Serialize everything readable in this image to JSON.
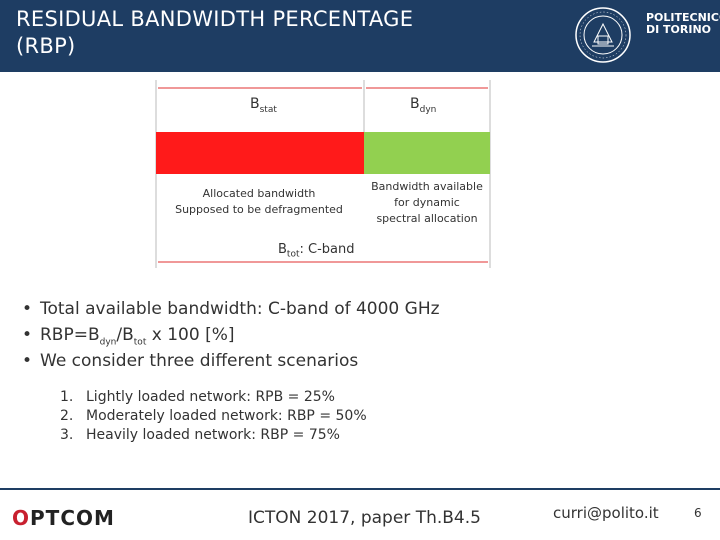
{
  "header": {
    "title_line1": "RESIDUAL BANDWIDTH PERCENTAGE",
    "title_line2": "(RBP)",
    "logo_line1": "POLITECNICO",
    "logo_line2": "DI TORINO",
    "colors": {
      "background": "#1e3d63",
      "text": "#ffffff"
    }
  },
  "diagram": {
    "bstat_main": "B",
    "bstat_sub": "stat",
    "bdyn_main": "B",
    "bdyn_sub": "dyn",
    "left_label_line1": "Allocated bandwidth",
    "left_label_line2": "Supposed to be defragmented",
    "right_label_line1": "Bandwidth available",
    "right_label_line2": "for dynamic",
    "right_label_line3": "spectral allocation",
    "btot_main": "B",
    "btot_sub": "tot",
    "btot_rest": ": C-band",
    "colors": {
      "allocated": "#ff1a1a",
      "available": "#92d050"
    }
  },
  "bullets": {
    "item1": "Total available bandwidth: C-band of 4000 GHz",
    "item2_a": "RBP=B",
    "item2_sub1": "dyn",
    "item2_b": "/B",
    "item2_sub2": "tot",
    "item2_c": " x 100 [%]",
    "item3": "We consider three different scenarios",
    "marker": "•"
  },
  "scenarios": [
    {
      "num": "1.",
      "text": "Lightly loaded network: RPB = 25%"
    },
    {
      "num": "2.",
      "text": "Moderately loaded network: RBP = 50%"
    },
    {
      "num": "3.",
      "text": "Heavily loaded network: RBP = 75%"
    }
  ],
  "footer": {
    "optcom_o": "O",
    "optcom_rest": "PTCOM",
    "conference": "ICTON 2017, paper Th.B4.5",
    "email": "curri@polito.it",
    "page": "6"
  }
}
